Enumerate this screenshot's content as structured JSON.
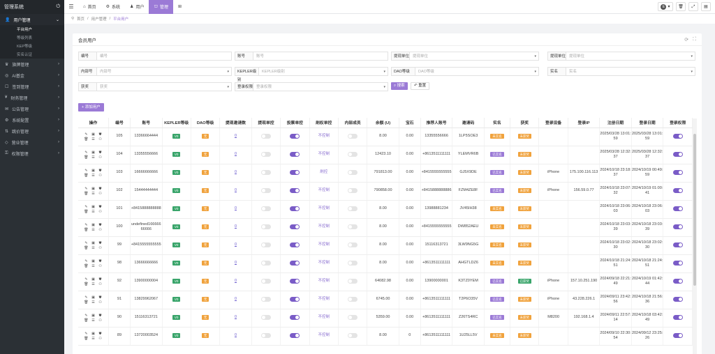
{
  "sidebar": {
    "title": "管理系统",
    "groups": [
      {
        "label": "用户管理",
        "open": true
      },
      {
        "label": "旗牌管理"
      },
      {
        "label": "AI基金"
      },
      {
        "label": "签到管理"
      },
      {
        "label": "财务管理"
      },
      {
        "label": "公告管理"
      },
      {
        "label": "系统配置"
      },
      {
        "label": "跳价管理"
      },
      {
        "label": "营业管理"
      },
      {
        "label": "权限管理"
      }
    ],
    "subs": [
      {
        "label": "平台用户",
        "active": true
      },
      {
        "label": "等级列表"
      },
      {
        "label": "KEP等级"
      },
      {
        "label": "实名认证"
      }
    ]
  },
  "topnav": {
    "items": [
      {
        "icon": "home-icon",
        "label": "首页"
      },
      {
        "icon": "gear-icon",
        "label": "系统"
      },
      {
        "icon": "user-icon",
        "label": "用户"
      },
      {
        "icon": "admin-icon",
        "label": "管理",
        "active": true
      }
    ],
    "avatar_letter": "E"
  },
  "breadcrumb": [
    "首页",
    "用户管理",
    "平台用户"
  ],
  "card": {
    "title": "会员用户",
    "add_button": "+ 添加用户",
    "search_button": "搜索",
    "reset_button": "重置"
  },
  "filters": [
    {
      "label": "编号",
      "placeholder": "编号"
    },
    {
      "label": "账号",
      "placeholder": "账号"
    },
    {
      "label": "提现单位",
      "placeholder": "提现单位",
      "select": true
    },
    {
      "label": "提现单位",
      "placeholder": "提现单位",
      "select": true
    },
    {
      "label": "内部号",
      "placeholder": "内部号",
      "select": true
    },
    {
      "label": "KEPLER级别",
      "placeholder": "KEPLER级别",
      "select": true
    },
    {
      "label": "DAO等级",
      "placeholder": "DAO等级",
      "select": true
    },
    {
      "label": "实名",
      "placeholder": "实名",
      "select": true
    },
    {
      "label": "获奖",
      "placeholder": "获奖",
      "select": true
    },
    {
      "label": "登录权限",
      "placeholder": "登录权限",
      "select": true
    }
  ],
  "table": {
    "headers": [
      "操作",
      "编号",
      "账号",
      "KEPLER等级",
      "DAO等级",
      "提现邀请数",
      "提现单控",
      "投票单控",
      "刷权单控",
      "内部成员",
      "余额 (U)",
      "宝石",
      "推荐人账号",
      "邀请码",
      "实名",
      "获奖",
      "登录设备",
      "登录IP",
      "注册日期",
      "登录日期",
      "登录权限"
    ],
    "rows": [
      {
        "id": "105",
        "account": "13366664444",
        "kep": "V0",
        "dao": "无",
        "invites": "0",
        "w": false,
        "vote": true,
        "brush": "不控制",
        "inner": false,
        "balance": "8.00",
        "gem": "0.00",
        "ref": "13355556666",
        "code": "1LP5SOE3",
        "real": "未实名",
        "prize": "未获奖",
        "device": "",
        "ip": "",
        "reg": "2025/03/28 13:01:59",
        "login": "2025/03/28 13:01:59",
        "perm": true
      },
      {
        "id": "104",
        "account": "13355556666",
        "kep": "V0",
        "dao": "无",
        "invites": "0",
        "w": false,
        "vote": true,
        "brush": "不控制",
        "inner": false,
        "balance": "12423.10",
        "gem": "0.00",
        "ref": "+8613511111111",
        "code": "YLEMVR6B",
        "real": "已实名",
        "prize": "未获奖",
        "device": "",
        "ip": "",
        "reg": "2025/03/28 12:32:37",
        "login": "2025/03/28 12:32:37",
        "perm": true
      },
      {
        "id": "103",
        "account": "16666666666",
        "kep": "V0",
        "dao": "无",
        "invites": "0",
        "w": false,
        "vote": true,
        "brush": "刷控",
        "inner": false,
        "balance": "791813.00",
        "gem": "0.00",
        "ref": "+8415555555555",
        "code": "GJ5X9DE",
        "real": "已实名",
        "prize": "未获奖",
        "device": "iPhone",
        "ip": "175.100.116.113",
        "reg": "2024/10/18 23:18:37",
        "login": "2024/10/19 00:49:59",
        "perm": true
      },
      {
        "id": "102",
        "account": "15444444444",
        "kep": "V0",
        "dao": "无",
        "invites": "0",
        "w": false,
        "vote": true,
        "brush": "不控制",
        "inner": false,
        "balance": "790858.00",
        "gem": "0.00",
        "ref": "+8415888888886",
        "code": "FZM4ZE8F",
        "real": "已实名",
        "prize": "未获奖",
        "device": "iPhone",
        "ip": "156.59.0.77",
        "reg": "2024/10/18 23:07:32",
        "login": "2024/10/19 01:00:41",
        "perm": true
      },
      {
        "id": "101",
        "account": "+8415888888888",
        "kep": "V0",
        "dao": "无",
        "invites": "0",
        "w": false,
        "vote": true,
        "brush": "不控制",
        "inner": false,
        "balance": "8.00",
        "gem": "0.00",
        "ref": "13988881234",
        "code": "JV45IH38",
        "real": "未实名",
        "prize": "未获奖",
        "device": "",
        "ip": "",
        "reg": "2024/10/18 23:06:03",
        "login": "2024/10/18 23:06:03",
        "perm": true
      },
      {
        "id": "100",
        "account": "undefined16666666666",
        "kep": "V0",
        "dao": "无",
        "invites": "0",
        "w": false,
        "vote": true,
        "brush": "不控制",
        "inner": false,
        "balance": "8.00",
        "gem": "0.00",
        "ref": "+8415555555555",
        "code": "DW852AEU",
        "real": "未实名",
        "prize": "未获奖",
        "device": "",
        "ip": "",
        "reg": "2024/10/18 23:03:39",
        "login": "2024/10/18 23:03:39",
        "perm": true
      },
      {
        "id": "99",
        "account": "+8415555555555",
        "kep": "V0",
        "dao": "无",
        "invites": "0",
        "w": false,
        "vote": true,
        "brush": "不控制",
        "inner": false,
        "balance": "8.00",
        "gem": "0.00",
        "ref": "15116313721",
        "code": "3LW9NG5G",
        "real": "未实名",
        "prize": "未获奖",
        "device": "",
        "ip": "",
        "reg": "2024/10/18 23:02:30",
        "login": "2024/10/18 23:02:30",
        "perm": true
      },
      {
        "id": "98",
        "account": "13666666666",
        "kep": "V0",
        "dao": "无",
        "invites": "0",
        "w": false,
        "vote": true,
        "brush": "不控制",
        "inner": false,
        "balance": "8.00",
        "gem": "0.00",
        "ref": "+8613511111111",
        "code": "AHGTLDZ6",
        "real": "未实名",
        "prize": "未获奖",
        "device": "",
        "ip": "",
        "reg": "2024/10/18 21:24:51",
        "login": "2024/10/18 21:24:51",
        "perm": true
      },
      {
        "id": "92",
        "account": "13900000004",
        "kep": "V0",
        "dao": "无",
        "invites": "0",
        "w": false,
        "vote": true,
        "brush": "不控制",
        "inner": false,
        "balance": "64082.98",
        "gem": "0.00",
        "ref": "13900000001",
        "code": "K3TZ0YEM",
        "real": "已实名",
        "prize": "已获奖",
        "device": "iPhone",
        "ip": "157.10.251.190",
        "reg": "2024/09/18 22:21:49",
        "login": "2024/10/19 01:42:44",
        "perm": true
      },
      {
        "id": "91",
        "account": "13829962067",
        "kep": "V0",
        "dao": "无",
        "invites": "0",
        "w": false,
        "vote": true,
        "brush": "不控制",
        "inner": false,
        "balance": "6745.00",
        "gem": "0.00",
        "ref": "+8613511111111",
        "code": "T2P6O35V",
        "real": "已实名",
        "prize": "未获奖",
        "device": "iPhone",
        "ip": "43.228.226.1",
        "reg": "2024/09/11 23:42:56",
        "login": "2024/10/18 21:56:36",
        "perm": true
      },
      {
        "id": "90",
        "account": "15116313721",
        "kep": "V0",
        "dao": "无",
        "invites": "0",
        "w": false,
        "vote": true,
        "brush": "不控制",
        "inner": false,
        "balance": "5359.00",
        "gem": "0.00",
        "ref": "+8613511111111",
        "code": "Z26TS4RC",
        "real": "已实名",
        "prize": "未获奖",
        "device": "M8200",
        "ip": "192.168.1.4",
        "reg": "2024/09/11 22:57:14",
        "login": "2024/10/18 03:42:49",
        "perm": true
      },
      {
        "id": "89",
        "account": "13720003524",
        "kep": "V0",
        "dao": "无",
        "invites": "0",
        "w": false,
        "vote": true,
        "brush": "不控制",
        "inner": false,
        "balance": "8.00",
        "gem": "0",
        "ref": "+8613511111111",
        "code": "1U25LL5V",
        "real": "未实名",
        "prize": "未获奖",
        "device": "",
        "ip": "",
        "reg": "2024/09/10 22:30:54",
        "login": "2024/09/12 23:25:26",
        "perm": true
      }
    ]
  }
}
